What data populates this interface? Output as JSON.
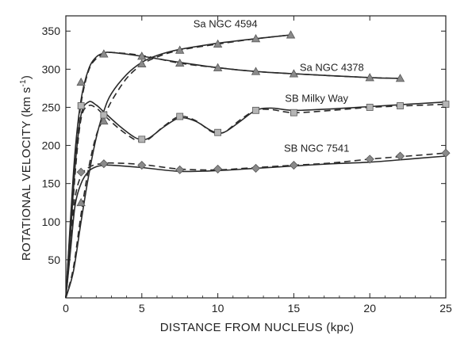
{
  "chart_data": {
    "type": "line",
    "xlabel": "DISTANCE  FROM  NUCLEUS  (kpc)",
    "ylabel": "ROTATIONAL  VELOCITY  (km s",
    "ylabel_sup": "-1",
    "ylabel_tail": ")",
    "xlim": [
      0,
      25
    ],
    "ylim": [
      0,
      370
    ],
    "xticks": [
      0,
      5,
      10,
      15,
      20,
      25
    ],
    "yticks": [
      50,
      100,
      150,
      200,
      250,
      300,
      350
    ],
    "grid": false,
    "series": [
      {
        "name": "Sa  NGC 4594",
        "marker": "triangle",
        "marker_color": "#8a8a8a",
        "points": [
          [
            1,
            125
          ],
          [
            2.5,
            232
          ],
          [
            5,
            307
          ],
          [
            7.5,
            325
          ],
          [
            10,
            333
          ],
          [
            12.5,
            340
          ],
          [
            14.8,
            345
          ]
        ],
        "solid": [
          [
            0,
            0
          ],
          [
            0.5,
            35
          ],
          [
            1,
            100
          ],
          [
            1.5,
            160
          ],
          [
            2,
            210
          ],
          [
            2.5,
            245
          ],
          [
            3,
            268
          ],
          [
            4,
            293
          ],
          [
            5,
            309
          ],
          [
            6,
            318
          ],
          [
            7.5,
            326
          ],
          [
            10,
            334
          ],
          [
            12.5,
            340
          ],
          [
            14.8,
            345
          ]
        ],
        "dashed": [
          [
            0,
            0
          ],
          [
            0.5,
            40
          ],
          [
            1,
            110
          ],
          [
            1.5,
            170
          ],
          [
            2,
            213
          ],
          [
            2.5,
            236
          ],
          [
            3,
            258
          ],
          [
            4,
            288
          ],
          [
            5,
            306
          ],
          [
            6,
            316
          ],
          [
            7.5,
            325
          ],
          [
            10,
            333
          ],
          [
            12.5,
            340
          ],
          [
            14.8,
            345
          ]
        ]
      },
      {
        "name": "Sa  NGC 4378",
        "marker": "triangle",
        "marker_color": "#8a8a8a",
        "points": [
          [
            1,
            283
          ],
          [
            2.5,
            320
          ],
          [
            5,
            317
          ],
          [
            7.5,
            308
          ],
          [
            10,
            302
          ],
          [
            12.5,
            297
          ],
          [
            15,
            294
          ],
          [
            20,
            289
          ],
          [
            22,
            288
          ]
        ],
        "solid": [
          [
            0,
            0
          ],
          [
            0.3,
            100
          ],
          [
            0.6,
            190
          ],
          [
            1,
            260
          ],
          [
            1.5,
            300
          ],
          [
            2,
            316
          ],
          [
            2.5,
            321
          ],
          [
            3,
            322
          ],
          [
            5,
            317
          ],
          [
            7.5,
            309
          ],
          [
            10,
            302
          ],
          [
            12.5,
            297
          ],
          [
            15,
            294
          ],
          [
            20,
            289
          ],
          [
            22,
            288
          ]
        ],
        "dashed": [
          [
            0,
            0
          ],
          [
            0.3,
            95
          ],
          [
            0.6,
            185
          ],
          [
            1,
            255
          ],
          [
            1.5,
            298
          ],
          [
            2,
            314
          ],
          [
            2.5,
            320
          ],
          [
            3,
            322
          ],
          [
            5,
            318
          ],
          [
            7.5,
            308
          ],
          [
            10,
            302
          ],
          [
            12.5,
            297
          ],
          [
            15,
            294
          ],
          [
            20,
            289
          ],
          [
            22,
            288
          ]
        ]
      },
      {
        "name": "SB  Milky Way",
        "marker": "square",
        "marker_color": "#b5b5b5",
        "points": [
          [
            1,
            252
          ],
          [
            2.5,
            240
          ],
          [
            5,
            208
          ],
          [
            7.5,
            238
          ],
          [
            10,
            217
          ],
          [
            12.5,
            246
          ],
          [
            15,
            243
          ],
          [
            20,
            250
          ],
          [
            22,
            252
          ],
          [
            25,
            254
          ]
        ],
        "solid": [
          [
            0,
            0
          ],
          [
            0.3,
            80
          ],
          [
            0.6,
            170
          ],
          [
            1,
            240
          ],
          [
            1.5,
            257
          ],
          [
            2,
            253
          ],
          [
            2.5,
            244
          ],
          [
            3.5,
            226
          ],
          [
            4.5,
            211
          ],
          [
            5,
            208
          ],
          [
            5.5,
            210
          ],
          [
            6.5,
            225
          ],
          [
            7.5,
            236
          ],
          [
            8.5,
            232
          ],
          [
            9.5,
            220
          ],
          [
            10,
            217
          ],
          [
            10.5,
            218
          ],
          [
            11.5,
            232
          ],
          [
            12.5,
            246
          ],
          [
            13.5,
            249
          ],
          [
            15,
            246
          ],
          [
            17.5,
            248
          ],
          [
            20,
            251
          ],
          [
            22.5,
            254
          ],
          [
            25,
            257
          ]
        ],
        "dashed": [
          [
            0,
            0
          ],
          [
            0.3,
            70
          ],
          [
            0.6,
            160
          ],
          [
            1,
            235
          ],
          [
            1.5,
            252
          ],
          [
            2,
            249
          ],
          [
            2.5,
            240
          ],
          [
            3.5,
            222
          ],
          [
            4.5,
            208
          ],
          [
            5,
            206
          ],
          [
            5.5,
            209
          ],
          [
            6.5,
            226
          ],
          [
            7.5,
            238
          ],
          [
            8.5,
            233
          ],
          [
            9.5,
            219
          ],
          [
            10,
            216
          ],
          [
            10.5,
            218
          ],
          [
            11.5,
            234
          ],
          [
            12.5,
            246
          ],
          [
            13.5,
            247
          ],
          [
            15,
            243
          ],
          [
            17.5,
            246
          ],
          [
            20,
            250
          ],
          [
            22.5,
            252
          ],
          [
            25,
            254
          ]
        ]
      },
      {
        "name": "SB  NGC 7541",
        "marker": "diamond",
        "marker_color": "#8a8a8a",
        "points": [
          [
            1,
            165
          ],
          [
            2.5,
            176
          ],
          [
            5,
            174
          ],
          [
            7.5,
            168
          ],
          [
            10,
            169
          ],
          [
            12.5,
            170
          ],
          [
            15,
            174
          ],
          [
            20,
            182
          ],
          [
            22,
            186
          ],
          [
            25,
            190
          ]
        ],
        "solid": [
          [
            0,
            0
          ],
          [
            0.3,
            60
          ],
          [
            0.6,
            120
          ],
          [
            1,
            150
          ],
          [
            1.5,
            166
          ],
          [
            2,
            172
          ],
          [
            2.5,
            174
          ],
          [
            3,
            174
          ],
          [
            5,
            171
          ],
          [
            7.5,
            166
          ],
          [
            10,
            167
          ],
          [
            12.5,
            170
          ],
          [
            15,
            173
          ],
          [
            17.5,
            176
          ],
          [
            20,
            178
          ],
          [
            22.5,
            182
          ],
          [
            25,
            186
          ]
        ],
        "dashed": [
          [
            0,
            0
          ],
          [
            0.3,
            65
          ],
          [
            0.6,
            130
          ],
          [
            1,
            160
          ],
          [
            1.5,
            171
          ],
          [
            2,
            175
          ],
          [
            2.5,
            176
          ],
          [
            3,
            177
          ],
          [
            5,
            175
          ],
          [
            7.5,
            169
          ],
          [
            10,
            168
          ],
          [
            12.5,
            171
          ],
          [
            15,
            174
          ],
          [
            17.5,
            177
          ],
          [
            20,
            182
          ],
          [
            22.5,
            186
          ],
          [
            25,
            190
          ]
        ]
      }
    ],
    "annotations": [
      {
        "text": "Sa   NGC 4594",
        "anchor_x": 10.5,
        "anchor_y": 355
      },
      {
        "text": "Sa   NGC 4378",
        "anchor_x": 17.5,
        "anchor_y": 298
      },
      {
        "text": "SB   Milky Way",
        "anchor_x": 16.5,
        "anchor_y": 257
      },
      {
        "text": "SB   NGC 7541",
        "anchor_x": 16.5,
        "anchor_y": 192
      }
    ]
  }
}
